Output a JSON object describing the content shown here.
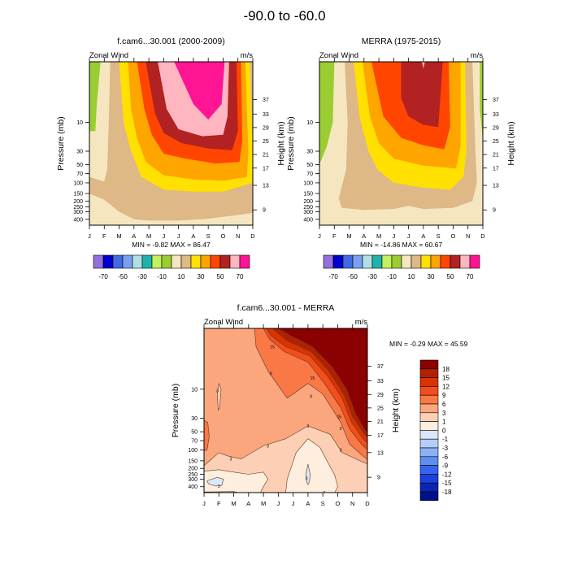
{
  "page_title": "-90.0 to -60.0",
  "chart_data": [
    {
      "type": "heatmap",
      "subtype": "filled-contour",
      "title": "f.cam6...30.001 (2000-2009)",
      "left_string": "Zonal Wind",
      "right_string": "m/s",
      "xlabel": "",
      "ylabel": "Pressure (mb)",
      "ylabel_right": "Height (km)",
      "x_ticks": [
        "J",
        "F",
        "M",
        "A",
        "M",
        "J",
        "J",
        "A",
        "S",
        "O",
        "N",
        "D"
      ],
      "y_ticks": [
        10,
        30,
        50,
        70,
        100,
        150,
        200,
        250,
        300,
        400
      ],
      "y_range_mb": [
        1,
        500
      ],
      "y_scale": "log",
      "height_ticks_km": [
        37,
        33,
        29,
        25,
        21,
        17,
        13,
        9
      ],
      "stats": "MIN = -9.82  MAX = 86.47",
      "min": -9.82,
      "max": 86.47,
      "contour_levels": [
        -70,
        -60,
        -50,
        -40,
        -30,
        -20,
        -10,
        0,
        10,
        20,
        30,
        40,
        50,
        60,
        70
      ],
      "colorbar_labels": [
        "-70",
        "-50",
        "-30",
        "-10",
        "10",
        "30",
        "50",
        "70"
      ],
      "colorbar_colors": [
        "#9370db",
        "#0000cd",
        "#4169e1",
        "#7b9ff0",
        "#b0e0e6",
        "#20b2aa",
        "#c2f060",
        "#9acd32",
        "#f5e6c0",
        "#deb887",
        "#ffe000",
        "#ffa500",
        "#ff4500",
        "#b22222",
        "#ffb6c1",
        "#ff1493"
      ],
      "colorbar_placement": "bottom",
      "bands_description": [
        {
          "level": 0,
          "month_profile": [
            4.8,
            0.6,
            0.4,
            0.35,
            0.3,
            0.3,
            0.25,
            0.25,
            0.25,
            0.3,
            0.5,
            2.5
          ],
          "color_index": 7
        },
        {
          "level": 10,
          "month_profile": [
            95,
            110,
            360,
            420,
            400,
            390,
            380,
            370,
            360,
            330,
            300,
            250
          ],
          "color_index": 8
        },
        {
          "level": 20,
          "month_profile": [
            500,
            500,
            500,
            500,
            500,
            500,
            500,
            500,
            500,
            500,
            500,
            500
          ],
          "color_index": 9
        }
      ]
    },
    {
      "type": "heatmap",
      "subtype": "filled-contour",
      "title": "MERRA (1975-2015)",
      "left_string": "Zonal Wind",
      "right_string": "m/s",
      "xlabel": "",
      "ylabel": "Pressure (mb)",
      "ylabel_right": "Height (km)",
      "x_ticks": [
        "J",
        "F",
        "M",
        "A",
        "M",
        "J",
        "J",
        "A",
        "S",
        "O",
        "N",
        "D"
      ],
      "y_ticks": [
        10,
        30,
        50,
        70,
        100,
        150,
        200,
        250,
        300,
        400
      ],
      "y_range_mb": [
        1,
        500
      ],
      "y_scale": "log",
      "height_ticks_km": [
        37,
        33,
        29,
        25,
        21,
        17,
        13,
        9
      ],
      "stats": "MIN = -14.86  MAX = 60.67",
      "min": -14.86,
      "max": 60.67,
      "contour_levels": [
        -70,
        -60,
        -50,
        -40,
        -30,
        -20,
        -10,
        0,
        10,
        20,
        30,
        40,
        50,
        60,
        70
      ],
      "colorbar_labels": [
        "-70",
        "-50",
        "-30",
        "-10",
        "10",
        "30",
        "50",
        "70"
      ],
      "colorbar_colors": [
        "#9370db",
        "#0000cd",
        "#4169e1",
        "#7b9ff0",
        "#b0e0e6",
        "#20b2aa",
        "#c2f060",
        "#9acd32",
        "#f5e6c0",
        "#deb887",
        "#ffe000",
        "#ffa500",
        "#ff4500",
        "#b22222",
        "#ffb6c1",
        "#ff1493"
      ],
      "colorbar_placement": "bottom"
    },
    {
      "type": "heatmap",
      "subtype": "filled-contour-with-lines",
      "title": "f.cam6...30.001 - MERRA",
      "left_string": "Zonal Wind",
      "right_string": "m/s",
      "xlabel": "",
      "ylabel": "Pressure (mb)",
      "ylabel_right": "Height (km)",
      "x_ticks": [
        "J",
        "F",
        "M",
        "A",
        "M",
        "J",
        "J",
        "A",
        "S",
        "O",
        "N",
        "D"
      ],
      "y_ticks": [
        10,
        30,
        50,
        70,
        100,
        150,
        200,
        250,
        300,
        400
      ],
      "y_range_mb": [
        1,
        500
      ],
      "y_scale": "log",
      "height_ticks_km": [
        37,
        33,
        29,
        25,
        21,
        17,
        13,
        9
      ],
      "stats": "MIN = -0.29  MAX = 45.59",
      "min": -0.29,
      "max": 45.59,
      "contour_levels": [
        -18,
        -15,
        -12,
        -9,
        -6,
        -3,
        -1,
        0,
        1,
        3,
        6,
        9,
        12,
        15,
        18
      ],
      "contour_line_labels": [
        "15",
        "9",
        "15",
        "9",
        "15",
        "9",
        "3",
        "3",
        "3",
        "3",
        "3",
        "3",
        "3",
        "3"
      ],
      "colorbar_labels": [
        "18",
        "15",
        "12",
        "9",
        "6",
        "3",
        "1",
        "0",
        "-1",
        "-3",
        "-6",
        "-9",
        "-12",
        "-15",
        "-18"
      ],
      "colorbar_colors_top_to_bottom": [
        "#8b0000",
        "#b22000",
        "#d93300",
        "#f24d1a",
        "#fa7846",
        "#fca67d",
        "#fdd0b5",
        "#fdeedd",
        "#dae8fa",
        "#b4cdfa",
        "#8cb1f5",
        "#5f8ef0",
        "#3565ee",
        "#1a40e0",
        "#0a24b4",
        "#00108a"
      ],
      "colorbar_placement": "right"
    }
  ]
}
